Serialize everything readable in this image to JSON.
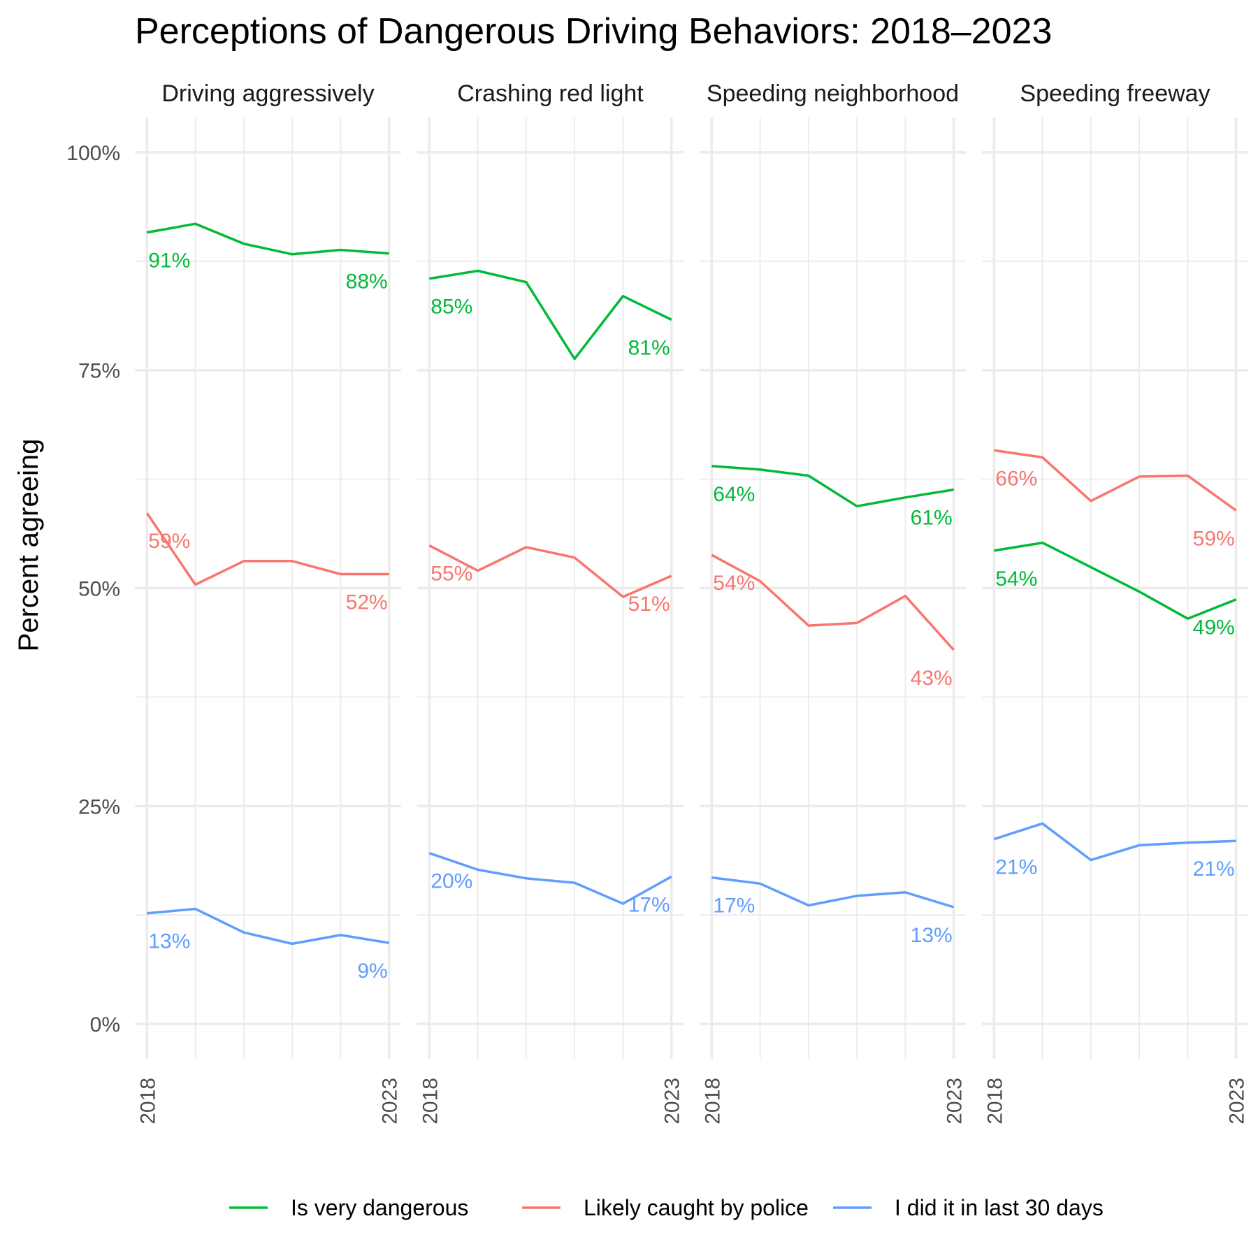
{
  "chart_data": {
    "type": "line",
    "title": "Perceptions of Dangerous Driving Behaviors: 2018–2023",
    "xlabel": "",
    "ylabel": "Percent agreeing",
    "ylim": [
      -4,
      104
    ],
    "y_ticks": [
      0,
      25,
      50,
      75,
      100
    ],
    "y_tick_labels": [
      "0%",
      "25%",
      "50%",
      "75%",
      "100%"
    ],
    "x": [
      2018,
      2019,
      2020,
      2021,
      2022,
      2023
    ],
    "x_tick_labels": [
      "2018",
      "2023"
    ],
    "legend_position": "bottom",
    "grid": true,
    "series_styles": [
      {
        "name": "Is very dangerous",
        "color": "#00ba38"
      },
      {
        "name": "Likely caught by police",
        "color": "#f8766d"
      },
      {
        "name": "I did it in last 30 days",
        "color": "#619cff"
      }
    ],
    "panels": [
      {
        "title": "Driving aggressively",
        "series": [
          {
            "name": "Is very dangerous",
            "values": [
              90.8,
              91.8,
              89.5,
              88.3,
              88.8,
              88.4
            ],
            "labels": [
              "91%",
              "88%"
            ]
          },
          {
            "name": "Likely caught by police",
            "values": [
              58.6,
              50.4,
              53.1,
              53.1,
              51.6,
              51.6
            ],
            "labels": [
              "59%",
              "52%"
            ]
          },
          {
            "name": "I did it in last 30 days",
            "values": [
              12.7,
              13.2,
              10.5,
              9.2,
              10.2,
              9.3
            ],
            "labels": [
              "13%",
              "9%"
            ]
          }
        ]
      },
      {
        "title": "Crashing red light",
        "series": [
          {
            "name": "Is very dangerous",
            "values": [
              85.5,
              86.4,
              85.1,
              76.3,
              83.5,
              80.8
            ],
            "labels": [
              "85%",
              "81%"
            ]
          },
          {
            "name": "Likely caught by police",
            "values": [
              54.9,
              52.0,
              54.7,
              53.5,
              49.0,
              51.4
            ],
            "labels": [
              "55%",
              "51%"
            ]
          },
          {
            "name": "I did it in last 30 days",
            "values": [
              19.6,
              17.7,
              16.7,
              16.2,
              13.8,
              16.9
            ],
            "labels": [
              "20%",
              "17%"
            ]
          }
        ]
      },
      {
        "title": "Speeding neighborhood",
        "series": [
          {
            "name": "Is very dangerous",
            "values": [
              64.0,
              63.6,
              62.9,
              59.4,
              60.4,
              61.3
            ],
            "labels": [
              "64%",
              "61%"
            ]
          },
          {
            "name": "Likely caught by police",
            "values": [
              53.8,
              50.8,
              45.7,
              46.0,
              49.1,
              42.9
            ],
            "labels": [
              "54%",
              "43%"
            ]
          },
          {
            "name": "I did it in last 30 days",
            "values": [
              16.8,
              16.1,
              13.6,
              14.7,
              15.1,
              13.4
            ],
            "labels": [
              "17%",
              "13%"
            ]
          }
        ]
      },
      {
        "title": "Speeding freeway",
        "series": [
          {
            "name": "Is very dangerous",
            "values": [
              54.3,
              55.2,
              52.4,
              49.6,
              46.5,
              48.7
            ],
            "labels": [
              "54%",
              "49%"
            ]
          },
          {
            "name": "Likely caught by police",
            "values": [
              65.8,
              65.0,
              60.0,
              62.8,
              62.9,
              58.9
            ],
            "labels": [
              "66%",
              "59%"
            ]
          },
          {
            "name": "I did it in last 30 days",
            "values": [
              21.2,
              23.0,
              18.8,
              20.5,
              20.8,
              21.0
            ],
            "labels": [
              "21%",
              "21%"
            ]
          }
        ]
      }
    ]
  }
}
